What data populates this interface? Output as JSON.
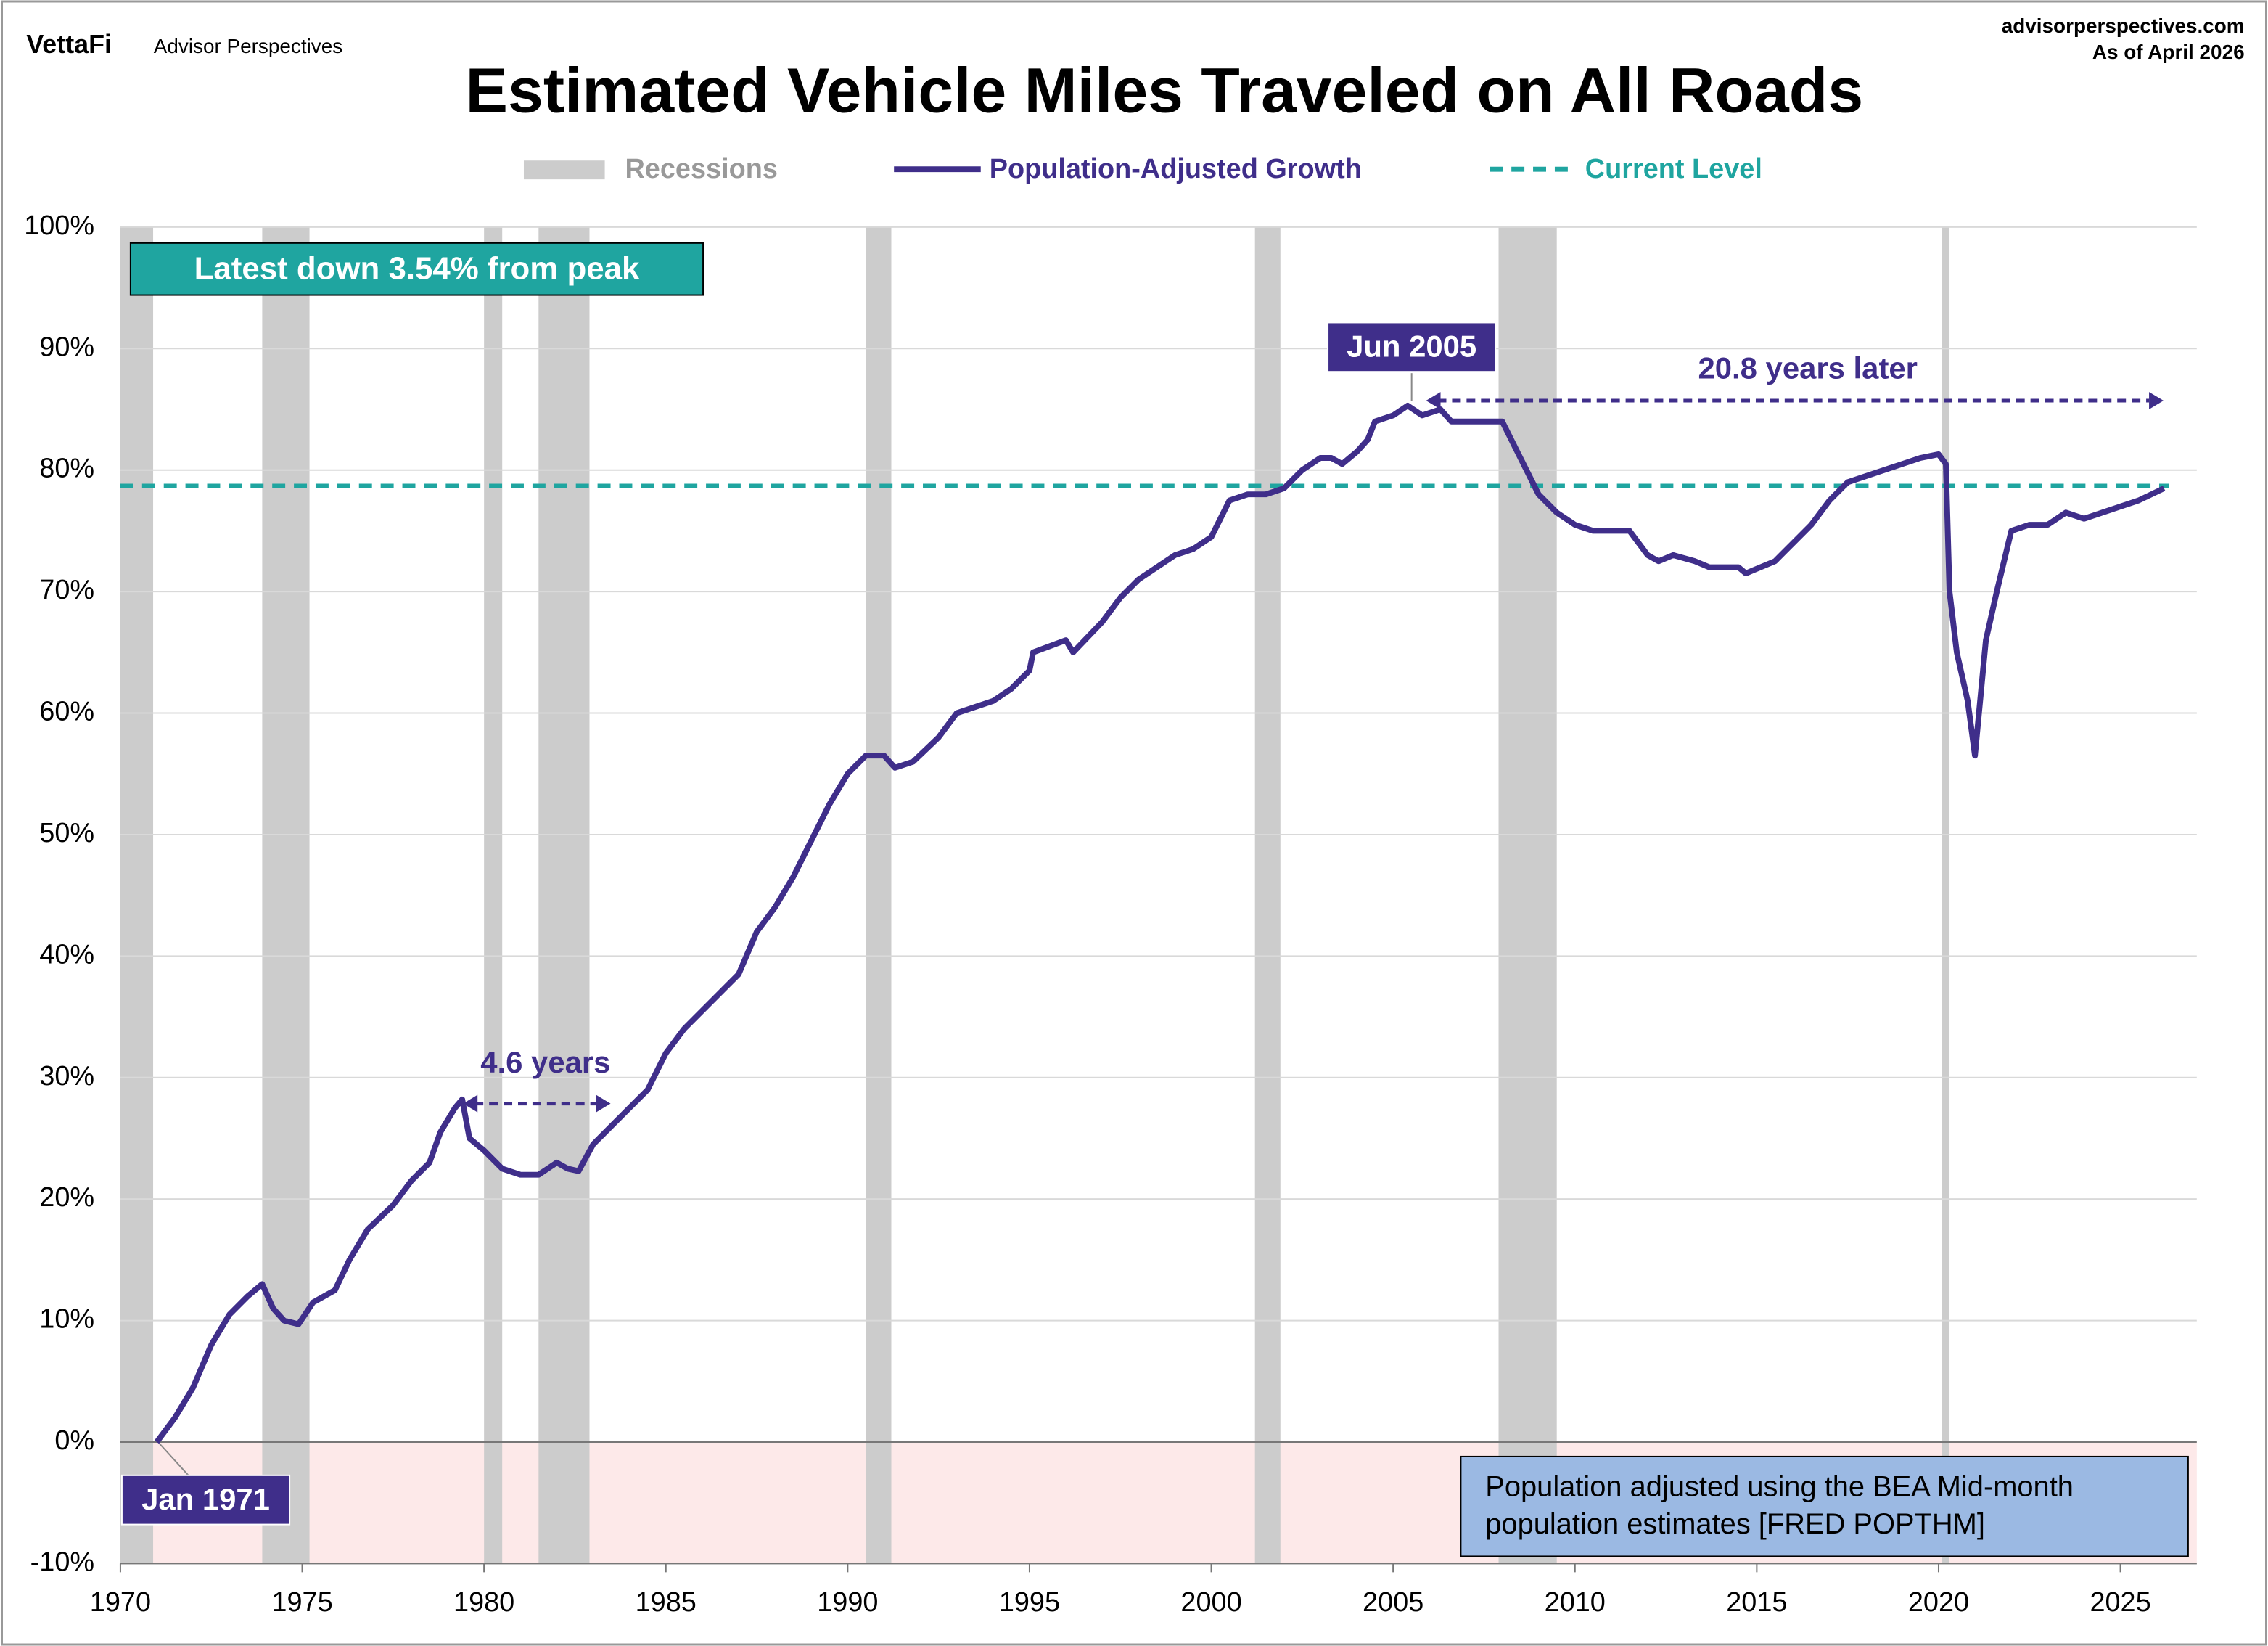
{
  "header": {
    "brand": "VettaFi",
    "brand_sub": "Advisor Perspectives",
    "site": "advisorperspectives.com",
    "date": "As of April 2026"
  },
  "chart_data": {
    "type": "line",
    "title": "Estimated Vehicle Miles Traveled on All Roads",
    "x": [
      1971.0,
      1971.5,
      1972.0,
      1972.5,
      1973.0,
      1973.5,
      1973.9,
      1974.2,
      1974.5,
      1974.9,
      1975.3,
      1975.9,
      1976.3,
      1976.8,
      1977.5,
      1978.0,
      1978.5,
      1978.8,
      1979.2,
      1979.4,
      1979.6,
      1980.0,
      1980.5,
      1981.0,
      1981.5,
      1982.0,
      1982.3,
      1982.6,
      1983.0,
      1983.5,
      1984.0,
      1984.5,
      1985.0,
      1985.5,
      1986.0,
      1986.5,
      1987.0,
      1987.5,
      1988.0,
      1988.5,
      1989.0,
      1989.5,
      1990.0,
      1990.5,
      1991.0,
      1991.3,
      1991.8,
      1992.5,
      1993.0,
      1993.5,
      1994.0,
      1994.5,
      1995.0,
      1995.1,
      1996.0,
      1996.2,
      1997.0,
      1997.5,
      1998.0,
      1998.5,
      1999.0,
      1999.5,
      2000.0,
      2000.5,
      2001.0,
      2001.5,
      2002.0,
      2002.5,
      2003.0,
      2003.3,
      2003.6,
      2004.0,
      2004.3,
      2004.5,
      2005.0,
      2005.4,
      2005.8,
      2006.3,
      2006.6,
      2007.0,
      2007.5,
      2008.0,
      2008.5,
      2009.0,
      2009.5,
      2010.0,
      2010.5,
      2011.5,
      2012.0,
      2012.3,
      2012.7,
      2013.3,
      2013.7,
      2014.5,
      2014.7,
      2015.5,
      2016.0,
      2016.5,
      2017.0,
      2017.5,
      2018.0,
      2018.5,
      2019.0,
      2019.5,
      2020.0,
      2020.2,
      2020.3,
      2020.5,
      2020.8,
      2021.0,
      2021.3,
      2021.6,
      2022.0,
      2022.5,
      2023.0,
      2023.5,
      2024.0,
      2024.5,
      2025.0,
      2025.5,
      2026.2
    ],
    "series": [
      {
        "name": "Population-Adjusted Growth",
        "color": "#3f2e8a",
        "values": [
          0,
          2,
          4.5,
          8,
          10.5,
          12,
          13,
          11,
          10,
          9.7,
          11.5,
          12.5,
          15,
          17.5,
          19.5,
          21.5,
          23,
          25.5,
          27.5,
          28.2,
          25,
          24,
          22.5,
          22,
          22,
          23,
          22.5,
          22.3,
          24.5,
          26,
          27.5,
          29,
          32,
          34,
          35.5,
          37,
          38.5,
          42,
          44,
          46.5,
          49.5,
          52.5,
          55,
          56.5,
          56.5,
          55.5,
          56,
          58,
          60,
          60.5,
          61,
          62,
          63.5,
          65,
          66,
          65,
          67.5,
          69.5,
          71,
          72,
          73,
          73.5,
          74.5,
          77.5,
          78,
          78,
          78.5,
          80,
          81,
          81,
          80.5,
          81.5,
          82.5,
          84,
          84.5,
          85.3,
          84.5,
          85,
          84,
          84,
          84,
          84,
          81,
          78,
          76.5,
          75.5,
          75,
          75,
          73,
          72.5,
          73,
          72.5,
          72,
          72,
          71.5,
          72.5,
          74,
          75.5,
          77.5,
          79,
          79.5,
          80,
          80.5,
          81,
          81.3,
          80.5,
          70,
          65,
          61,
          56.5,
          66,
          70,
          75,
          75.5,
          75.5,
          76.5,
          76,
          76.5,
          77,
          77.5,
          78.5
        ]
      }
    ],
    "reference_line": {
      "name": "Current Level",
      "color": "#1fa5a0",
      "value": 78.7
    },
    "recessions": {
      "name": "Recessions",
      "color": "#cccccc",
      "periods": [
        [
          1970.0,
          1970.9
        ],
        [
          1973.9,
          1975.2
        ],
        [
          1980.0,
          1980.5
        ],
        [
          1981.5,
          1982.9
        ],
        [
          1990.5,
          1991.2
        ],
        [
          2001.2,
          2001.9
        ],
        [
          2007.9,
          2009.5
        ],
        [
          2020.1,
          2020.3
        ]
      ]
    },
    "xlim": [
      1970,
      2027.1
    ],
    "xticks": [
      1970,
      1975,
      1980,
      1985,
      1990,
      1995,
      2000,
      2005,
      2010,
      2015,
      2020,
      2025
    ],
    "ylim": [
      -10,
      100
    ],
    "yticks": [
      {
        "value": -10,
        "label": "-10%"
      },
      {
        "value": 0,
        "label": "0%"
      },
      {
        "value": 10,
        "label": "10%"
      },
      {
        "value": 20,
        "label": "20%"
      },
      {
        "value": 30,
        "label": "30%"
      },
      {
        "value": 40,
        "label": "40%"
      },
      {
        "value": 50,
        "label": "50%"
      },
      {
        "value": 60,
        "label": "60%"
      },
      {
        "value": 70,
        "label": "70%"
      },
      {
        "value": 80,
        "label": "80%"
      },
      {
        "value": 90,
        "label": "90%"
      },
      {
        "value": 100,
        "label": "100%"
      }
    ],
    "grid": true,
    "annotations": {
      "latest": "Latest down 3.54% from peak",
      "peak": "Jun 2005",
      "later": "20.8 years later",
      "gap": "4.6 years",
      "start": "Jan 1971",
      "note": [
        "Population adjusted using the BEA Mid-month",
        "population estimates [FRED POPTHM]"
      ]
    }
  }
}
